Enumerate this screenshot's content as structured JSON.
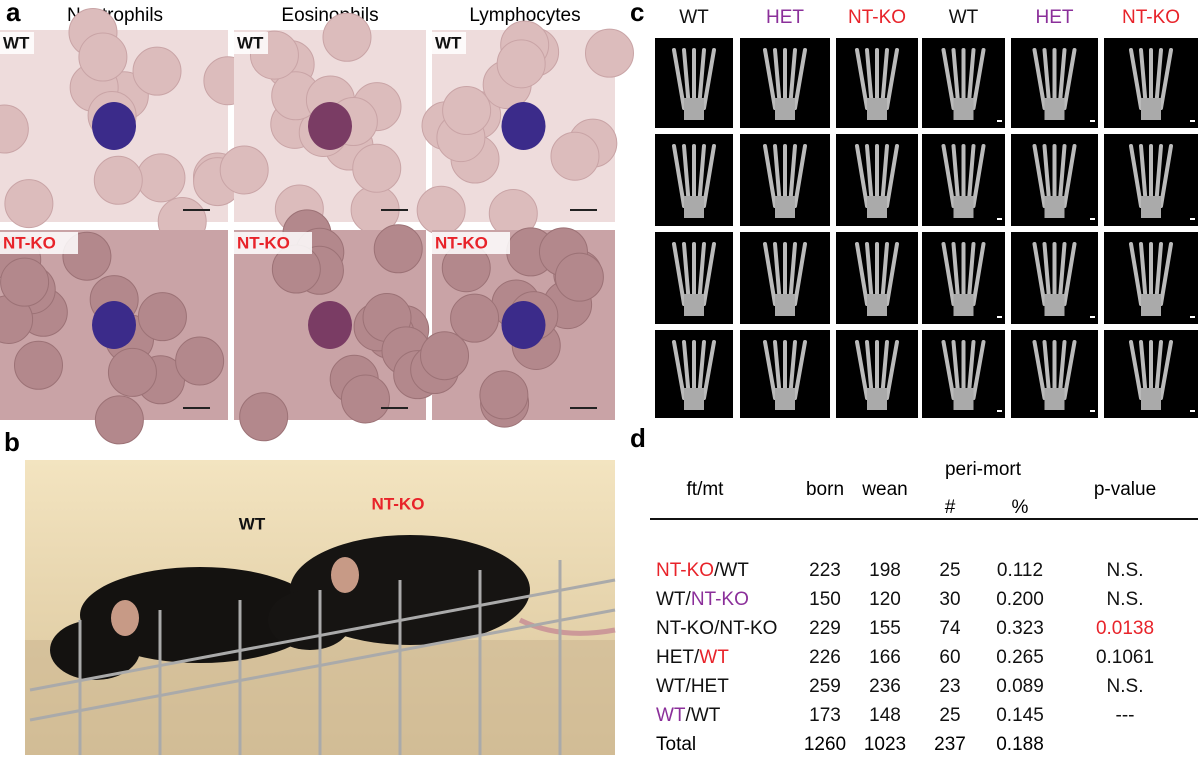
{
  "panel_a": {
    "label": "a",
    "columns": [
      "Neutrophils",
      "Eosinophils",
      "Lymphocytes"
    ],
    "rows": [
      "WT",
      "NT-KO"
    ]
  },
  "panel_b": {
    "label": "b",
    "tags": [
      "WT",
      "NT-KO"
    ]
  },
  "panel_c": {
    "label": "c",
    "columns": [
      "WT",
      "HET",
      "NT-KO",
      "WT",
      "HET",
      "NT-KO"
    ]
  },
  "panel_d": {
    "label": "d",
    "headers": {
      "ft_mt": "ft/mt",
      "born": "born",
      "wean": "wean",
      "peri_mort": "peri-mort",
      "count": "#",
      "percent": "%",
      "p_value": "p-value"
    },
    "rows": [
      [
        "NT-KO",
        "/",
        "WT",
        "223",
        "198",
        "25",
        "0.112",
        "N.S."
      ],
      [
        "WT",
        "/",
        "NT-KO",
        "150",
        "120",
        "30",
        "0.200",
        "N.S."
      ],
      [
        "NT-KO",
        "/",
        "NT-KO",
        "229",
        "155",
        "74",
        "0.323",
        "0.0138"
      ],
      [
        "HET",
        "/",
        "WT",
        "226",
        "166",
        "60",
        "0.265",
        "0.1061"
      ],
      [
        "WT",
        "/",
        "HET",
        "259",
        "236",
        "23",
        "0.089",
        "N.S."
      ],
      [
        "WT",
        "/",
        "WT",
        "173",
        "148",
        "25",
        "0.145",
        "---"
      ]
    ],
    "total": [
      "Total",
      "1260",
      "1023",
      "237",
      "0.188"
    ]
  }
}
